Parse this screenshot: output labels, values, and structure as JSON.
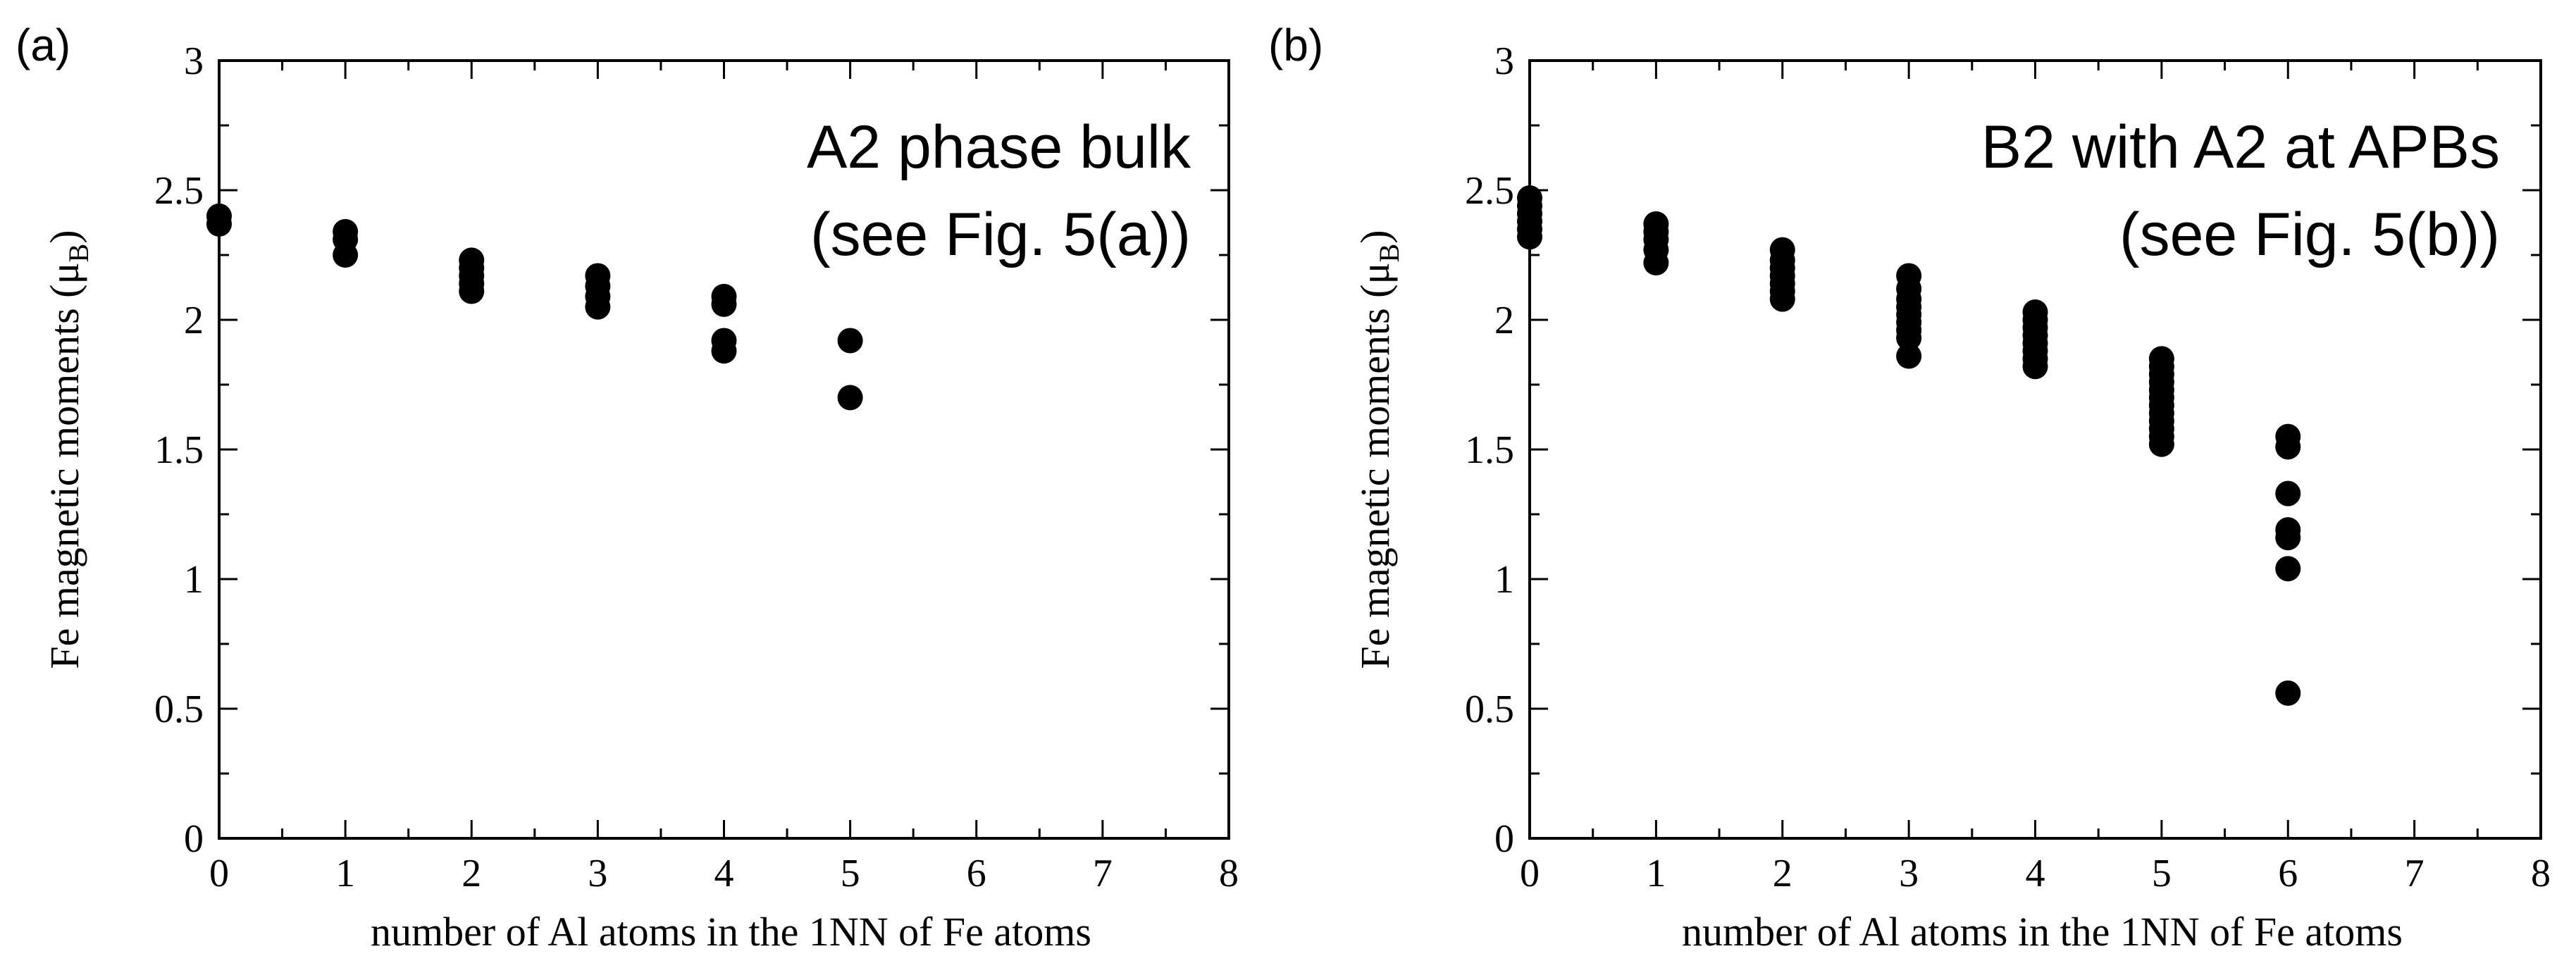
{
  "chart_data": [
    {
      "type": "scatter",
      "panel_label": "(a)",
      "title": "",
      "annotation": [
        "A2 phase bulk",
        "(see Fig. 5(a))"
      ],
      "xlabel": "number of Al atoms in the 1NN of Fe atoms",
      "ylabel_main": "Fe magnetic moments (μ",
      "ylabel_sub": "B",
      "ylabel_end": ")",
      "xlim": [
        0,
        8
      ],
      "ylim": [
        0,
        3
      ],
      "x_ticks": [
        0,
        1,
        2,
        3,
        4,
        5,
        6,
        7,
        8
      ],
      "x_tick_labels": [
        "0",
        "1",
        "2",
        "3",
        "4",
        "5",
        "6",
        "7",
        "8"
      ],
      "y_ticks": [
        0,
        0.5,
        1,
        1.5,
        2,
        2.5,
        3
      ],
      "y_tick_labels": [
        "0",
        "0.5",
        "1",
        "1.5",
        "2",
        "2.5",
        "3"
      ],
      "grid": false,
      "points": [
        {
          "x": 0,
          "y": 2.37
        },
        {
          "x": 0,
          "y": 2.4
        },
        {
          "x": 1,
          "y": 2.25
        },
        {
          "x": 1,
          "y": 2.31
        },
        {
          "x": 1,
          "y": 2.34
        },
        {
          "x": 2,
          "y": 2.11
        },
        {
          "x": 2,
          "y": 2.14
        },
        {
          "x": 2,
          "y": 2.17
        },
        {
          "x": 2,
          "y": 2.2
        },
        {
          "x": 2,
          "y": 2.23
        },
        {
          "x": 3,
          "y": 2.05
        },
        {
          "x": 3,
          "y": 2.09
        },
        {
          "x": 3,
          "y": 2.13
        },
        {
          "x": 3,
          "y": 2.17
        },
        {
          "x": 4,
          "y": 1.88
        },
        {
          "x": 4,
          "y": 1.92
        },
        {
          "x": 4,
          "y": 2.06
        },
        {
          "x": 4,
          "y": 2.09
        },
        {
          "x": 5,
          "y": 1.7
        },
        {
          "x": 5,
          "y": 1.92
        }
      ]
    },
    {
      "type": "scatter",
      "panel_label": "(b)",
      "title": "",
      "annotation": [
        "B2 with A2 at APBs",
        "(see Fig. 5(b))"
      ],
      "xlabel": "number of Al atoms in the 1NN of Fe atoms",
      "ylabel_main": "Fe magnetic moments (μ",
      "ylabel_sub": "B",
      "ylabel_end": ")",
      "xlim": [
        0,
        8
      ],
      "ylim": [
        0,
        3
      ],
      "x_ticks": [
        0,
        1,
        2,
        3,
        4,
        5,
        6,
        7,
        8
      ],
      "x_tick_labels": [
        "0",
        "1",
        "2",
        "3",
        "4",
        "5",
        "6",
        "7",
        "8"
      ],
      "y_ticks": [
        0,
        0.5,
        1,
        1.5,
        2,
        2.5,
        3
      ],
      "y_tick_labels": [
        "0",
        "0.5",
        "1",
        "1.5",
        "2",
        "2.5",
        "3"
      ],
      "grid": false,
      "points": [
        {
          "x": 0,
          "y": 2.32
        },
        {
          "x": 0,
          "y": 2.35
        },
        {
          "x": 0,
          "y": 2.38
        },
        {
          "x": 0,
          "y": 2.41
        },
        {
          "x": 0,
          "y": 2.44
        },
        {
          "x": 0,
          "y": 2.47
        },
        {
          "x": 1,
          "y": 2.22
        },
        {
          "x": 1,
          "y": 2.27
        },
        {
          "x": 1,
          "y": 2.31
        },
        {
          "x": 1,
          "y": 2.34
        },
        {
          "x": 1,
          "y": 2.37
        },
        {
          "x": 2,
          "y": 2.08
        },
        {
          "x": 2,
          "y": 2.11
        },
        {
          "x": 2,
          "y": 2.14
        },
        {
          "x": 2,
          "y": 2.17
        },
        {
          "x": 2,
          "y": 2.2
        },
        {
          "x": 2,
          "y": 2.23
        },
        {
          "x": 2,
          "y": 2.27
        },
        {
          "x": 3,
          "y": 1.86
        },
        {
          "x": 3,
          "y": 1.93
        },
        {
          "x": 3,
          "y": 1.96
        },
        {
          "x": 3,
          "y": 1.99
        },
        {
          "x": 3,
          "y": 2.02
        },
        {
          "x": 3,
          "y": 2.05
        },
        {
          "x": 3,
          "y": 2.08
        },
        {
          "x": 3,
          "y": 2.12
        },
        {
          "x": 3,
          "y": 2.17
        },
        {
          "x": 4,
          "y": 1.82
        },
        {
          "x": 4,
          "y": 1.85
        },
        {
          "x": 4,
          "y": 1.88
        },
        {
          "x": 4,
          "y": 1.91
        },
        {
          "x": 4,
          "y": 1.94
        },
        {
          "x": 4,
          "y": 1.97
        },
        {
          "x": 4,
          "y": 2.0
        },
        {
          "x": 4,
          "y": 2.03
        },
        {
          "x": 5,
          "y": 1.52
        },
        {
          "x": 5,
          "y": 1.55
        },
        {
          "x": 5,
          "y": 1.58
        },
        {
          "x": 5,
          "y": 1.61
        },
        {
          "x": 5,
          "y": 1.64
        },
        {
          "x": 5,
          "y": 1.67
        },
        {
          "x": 5,
          "y": 1.7
        },
        {
          "x": 5,
          "y": 1.73
        },
        {
          "x": 5,
          "y": 1.76
        },
        {
          "x": 5,
          "y": 1.79
        },
        {
          "x": 5,
          "y": 1.82
        },
        {
          "x": 5,
          "y": 1.85
        },
        {
          "x": 6,
          "y": 0.56
        },
        {
          "x": 6,
          "y": 1.04
        },
        {
          "x": 6,
          "y": 1.16
        },
        {
          "x": 6,
          "y": 1.19
        },
        {
          "x": 6,
          "y": 1.33
        },
        {
          "x": 6,
          "y": 1.51
        },
        {
          "x": 6,
          "y": 1.55
        }
      ]
    }
  ]
}
